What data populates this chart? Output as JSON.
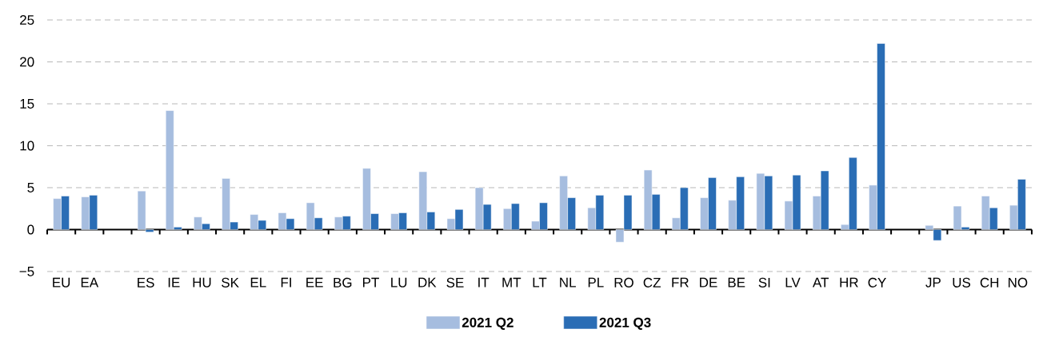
{
  "chart_data": {
    "type": "bar",
    "categories": [
      "EU",
      "EA",
      null,
      "ES",
      "IE",
      "HU",
      "SK",
      "EL",
      "FI",
      "EE",
      "BG",
      "PT",
      "LU",
      "DK",
      "SE",
      "IT",
      "MT",
      "LT",
      "NL",
      "PL",
      "RO",
      "CZ",
      "FR",
      "DE",
      "BE",
      "SI",
      "LV",
      "AT",
      "HR",
      "CY",
      null,
      "JP",
      "US",
      "CH",
      "NO"
    ],
    "series": [
      {
        "name": "2021 Q2",
        "color": "#a6bddf",
        "values": [
          3.7,
          3.9,
          null,
          4.6,
          14.2,
          1.5,
          6.1,
          1.8,
          2.0,
          3.2,
          1.5,
          7.3,
          1.9,
          6.9,
          1.3,
          5.0,
          2.5,
          1.0,
          6.4,
          2.6,
          -1.5,
          7.1,
          1.4,
          3.8,
          3.5,
          6.7,
          3.4,
          4.0,
          0.6,
          5.3,
          null,
          0.5,
          2.8,
          4.0,
          2.9
        ]
      },
      {
        "name": "2021 Q3",
        "color": "#2a6db5",
        "values": [
          4.0,
          4.1,
          null,
          -0.3,
          0.3,
          0.7,
          0.9,
          1.1,
          1.3,
          1.4,
          1.6,
          1.9,
          2.0,
          2.1,
          2.4,
          3.0,
          3.1,
          3.2,
          3.8,
          4.1,
          4.1,
          4.2,
          5.0,
          6.2,
          6.3,
          6.4,
          6.5,
          7.0,
          8.6,
          22.2,
          null,
          -1.3,
          0.3,
          2.6,
          6.0
        ]
      }
    ],
    "ylim": [
      -5,
      25
    ],
    "yticks": [
      {
        "value": -5,
        "label": "−5"
      },
      0,
      5,
      10,
      15,
      20,
      25
    ],
    "grid": "y",
    "legend": "bottom"
  }
}
